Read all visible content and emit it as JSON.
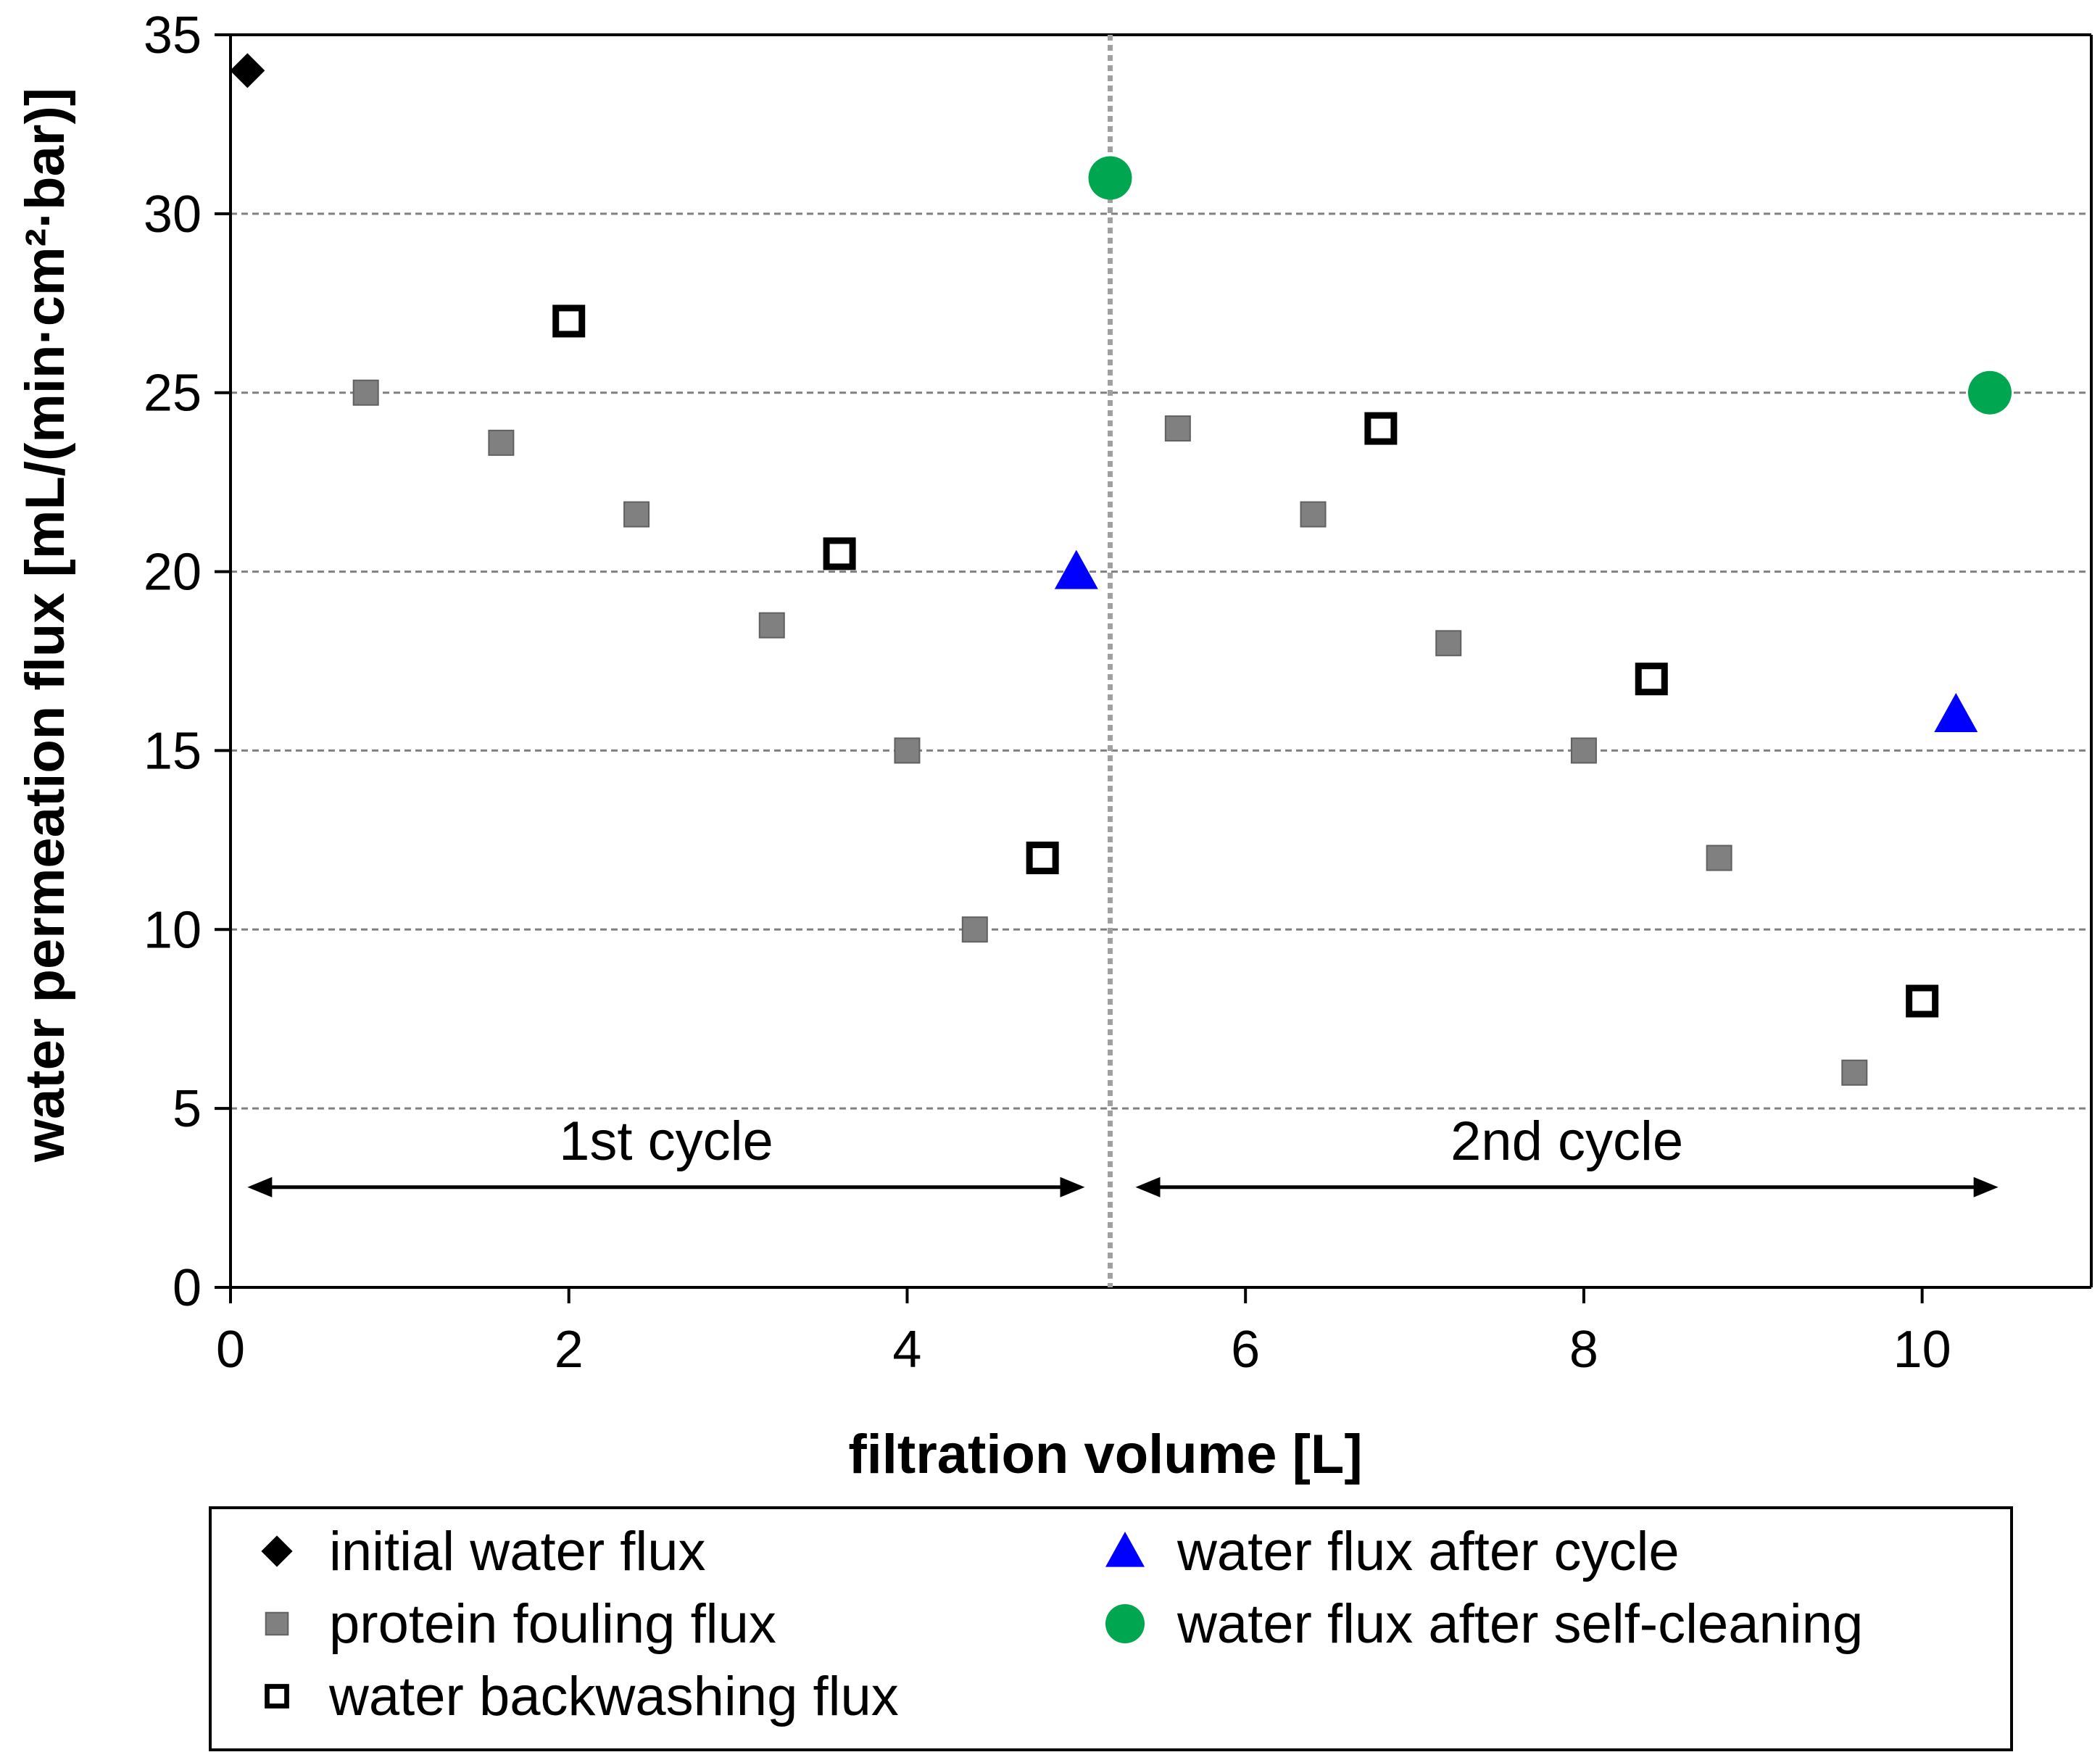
{
  "chart_data": {
    "type": "scatter",
    "title": "",
    "xlabel": "filtration volume [L]",
    "ylabel": "water permeation flux [mL/(min·cm²·bar)]",
    "xlim": [
      0,
      11
    ],
    "ylim": [
      0,
      35
    ],
    "xticks": [
      0,
      2,
      4,
      6,
      8,
      10
    ],
    "xtick_labels": [
      "0",
      "2",
      "4",
      "6",
      "8",
      "10"
    ],
    "yticks": [
      0,
      5,
      10,
      15,
      20,
      25,
      30,
      35
    ],
    "ytick_labels": [
      "0",
      "5",
      "10",
      "15",
      "20",
      "25",
      "30",
      "35"
    ],
    "grid": "horizontal dashed",
    "divider_x": 5.2,
    "series": [
      {
        "name": "initial water flux",
        "marker": "diamond",
        "color": "#000000",
        "points": [
          [
            0.1,
            34
          ]
        ]
      },
      {
        "name": "protein fouling flux",
        "marker": "square-filled",
        "color": "#808080",
        "points": [
          [
            0.8,
            25
          ],
          [
            1.6,
            23.6
          ],
          [
            2.4,
            21.6
          ],
          [
            3.2,
            18.5
          ],
          [
            4.0,
            15
          ],
          [
            4.4,
            10
          ],
          [
            5.6,
            24
          ],
          [
            6.4,
            21.6
          ],
          [
            7.2,
            18
          ],
          [
            8.0,
            15
          ],
          [
            8.8,
            12
          ],
          [
            9.6,
            6
          ]
        ]
      },
      {
        "name": "water backwashing flux",
        "marker": "square-open",
        "color": "#000000",
        "points": [
          [
            2.0,
            27
          ],
          [
            3.6,
            20.5
          ],
          [
            4.8,
            12
          ],
          [
            6.8,
            24
          ],
          [
            8.4,
            17
          ],
          [
            10.0,
            8
          ]
        ]
      },
      {
        "name": "water flux after cycle",
        "marker": "triangle",
        "color": "#0000ff",
        "points": [
          [
            5.0,
            20
          ],
          [
            10.2,
            16
          ]
        ]
      },
      {
        "name": "water flux after self-cleaning",
        "marker": "circle",
        "color": "#00a650",
        "points": [
          [
            5.2,
            31
          ],
          [
            10.4,
            25
          ]
        ]
      }
    ],
    "annotations": [
      {
        "text": "1st cycle",
        "x_from": 0.1,
        "x_to": 5.05,
        "y": 2.8
      },
      {
        "text": "2nd cycle",
        "x_from": 5.35,
        "x_to": 10.45,
        "y": 2.8
      }
    ],
    "legend_position": "below"
  }
}
